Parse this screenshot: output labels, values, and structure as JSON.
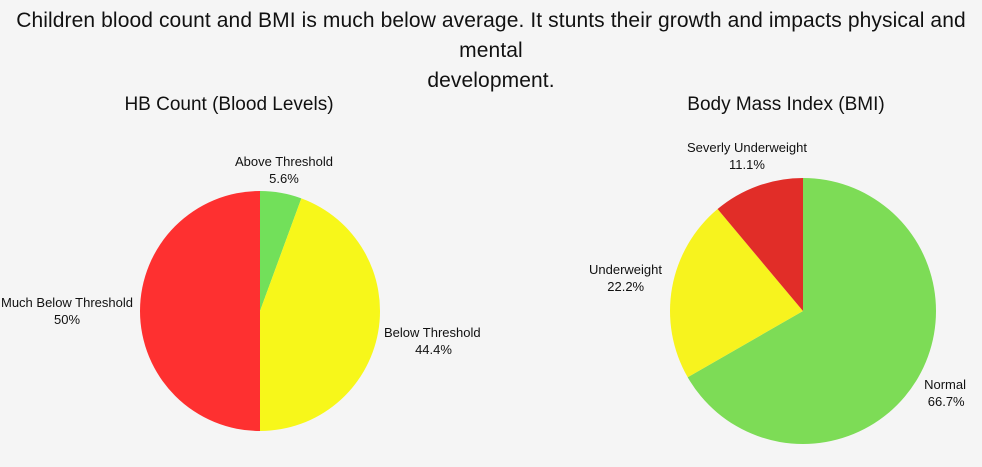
{
  "headline": {
    "line1": "Children blood count and BMI is much below average. It stunts their growth and impacts physical and mental",
    "line2": "development."
  },
  "chart_data": [
    {
      "type": "pie",
      "title": "HB Count (Blood Levels)",
      "slices": [
        {
          "label": "Above Threshold",
          "value": 5.6,
          "display": "5.6%",
          "color": "#72e05a"
        },
        {
          "label": "Below Threshold",
          "value": 44.4,
          "display": "44.4%",
          "color": "#f7f71a"
        },
        {
          "label": "Much Below Threshold",
          "value": 50,
          "display": "50%",
          "color": "#fe3030"
        }
      ],
      "start": "12 o'clock",
      "direction": "clockwise"
    },
    {
      "type": "pie",
      "title": "Body Mass Index (BMI)",
      "slices": [
        {
          "label": "Normal",
          "value": 66.7,
          "display": "66.7%",
          "color": "#7ddc56"
        },
        {
          "label": "Underweight",
          "value": 22.2,
          "display": "22.2%",
          "color": "#f7f31e"
        },
        {
          "label": "Severly Underweight",
          "value": 11.1,
          "display": "11.1%",
          "color": "#e12d28"
        }
      ],
      "start": "12 o'clock",
      "direction": "clockwise"
    }
  ]
}
